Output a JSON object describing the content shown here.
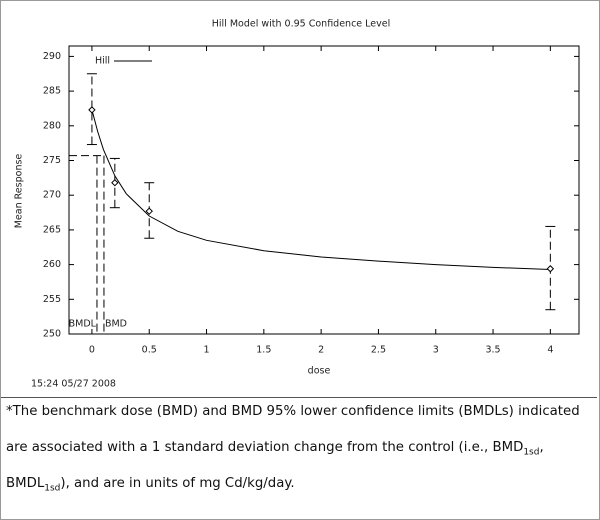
{
  "chart_data": {
    "type": "dose-response",
    "title": "Hill Model with 0.95 Confidence Level",
    "xlabel": "dose",
    "ylabel": "Mean Response",
    "timestamp": "15:24 05/27 2008",
    "xlim": [
      -0.2,
      4.25
    ],
    "ylim": [
      250,
      291.5
    ],
    "xticks": [
      0,
      0.5,
      1,
      1.5,
      2,
      2.5,
      3,
      3.5,
      4
    ],
    "yticks": [
      250,
      255,
      260,
      265,
      270,
      275,
      280,
      285,
      290
    ],
    "legend": "upper left",
    "series": [
      {
        "name": "Hill",
        "color": "#000000",
        "x": [
          0,
          0.05,
          0.1,
          0.2,
          0.3,
          0.5,
          0.75,
          1,
          1.5,
          2,
          2.5,
          3,
          3.5,
          4
        ],
        "values": [
          282.3,
          279.2,
          276.6,
          272.8,
          270.2,
          267,
          264.8,
          263.5,
          262,
          261.1,
          260.5,
          260,
          259.6,
          259.3
        ]
      }
    ],
    "observed": {
      "x": [
        0,
        0.2,
        0.5,
        4
      ],
      "values": [
        282.3,
        271.8,
        267.7,
        259.4
      ],
      "lower": [
        277.3,
        268.2,
        263.8,
        253.5
      ],
      "upper": [
        287.5,
        275.3,
        271.8,
        265.5
      ]
    },
    "bmd": {
      "response": 275.7,
      "bmdl": 0.044,
      "bmd": 0.105,
      "bmdl_label": "BMDL",
      "bmd_label": "BMD"
    }
  },
  "caption": [
    "*The benchmark dose (BMD) and BMD 95% lower confidence limits (BMDLs) indicated",
    "are associated with a 1 standard deviation change from the control (i.e., BMD",
    "1sd",
    ",",
    "BMDL",
    "1sd",
    "), and are in units of mg Cd/kg/day."
  ]
}
